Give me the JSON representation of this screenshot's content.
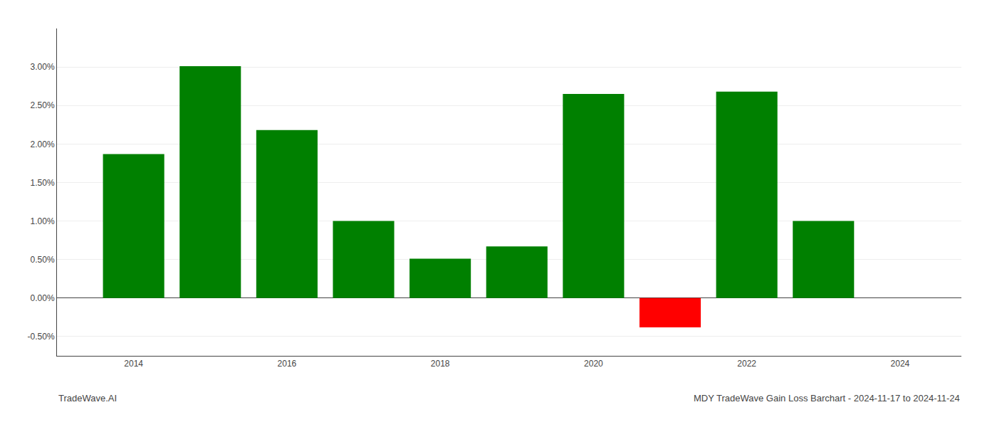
{
  "chart_data": {
    "type": "bar",
    "x": [
      2014,
      2015,
      2016,
      2017,
      2018,
      2019,
      2020,
      2021,
      2022,
      2023
    ],
    "values": [
      0.0187,
      0.0301,
      0.0218,
      0.01,
      0.0051,
      0.0067,
      0.0265,
      -0.0038,
      0.0268,
      0.01
    ],
    "colors": [
      "#008000",
      "#008000",
      "#008000",
      "#008000",
      "#008000",
      "#008000",
      "#008000",
      "#ff0000",
      "#008000",
      "#008000"
    ],
    "xlim": [
      2013.0,
      2024.8
    ],
    "xticks": [
      2014,
      2016,
      2018,
      2020,
      2022,
      2024
    ],
    "ylim": [
      -0.0075,
      0.035
    ],
    "yticks": [
      {
        "value": -0.005,
        "label": "-0.50%"
      },
      {
        "value": 0.0,
        "label": "0.00%"
      },
      {
        "value": 0.005,
        "label": "0.50%"
      },
      {
        "value": 0.01,
        "label": "1.00%"
      },
      {
        "value": 0.015,
        "label": "1.50%"
      },
      {
        "value": 0.02,
        "label": "2.00%"
      },
      {
        "value": 0.025,
        "label": "2.50%"
      },
      {
        "value": 0.03,
        "label": "3.00%"
      }
    ],
    "grid": true,
    "annotations": [
      "TradeWave.AI",
      "MDY TradeWave Gain Loss Barchart - 2024-11-17 to 2024-11-24"
    ]
  }
}
